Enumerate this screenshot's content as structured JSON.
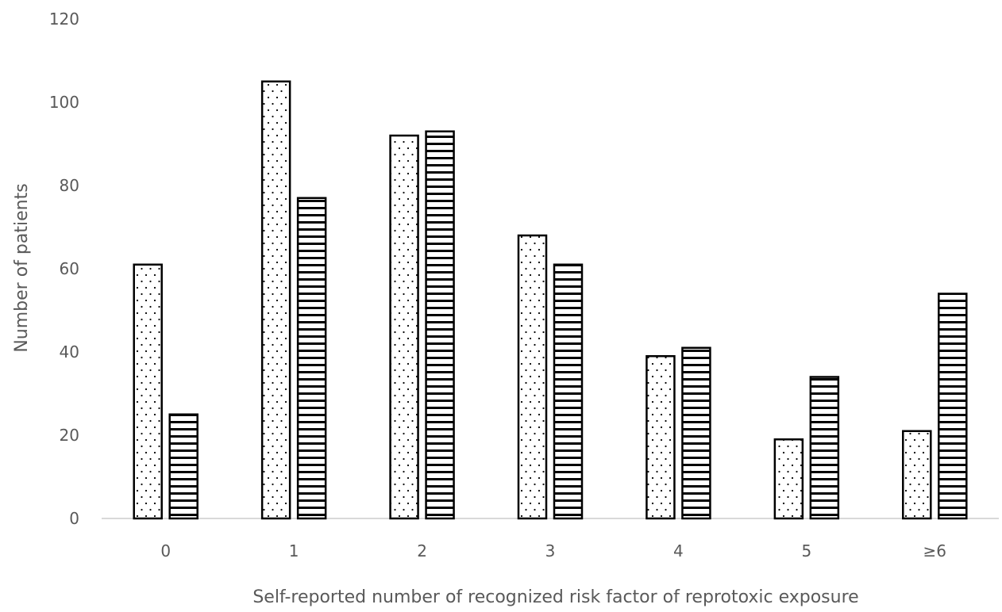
{
  "chart_data": {
    "type": "bar",
    "title": "",
    "xlabel": "Self-reported number of recognized risk factor of reprotoxic exposure",
    "ylabel": "Number of patients",
    "categories": [
      "0",
      "1",
      "2",
      "3",
      "4",
      "5",
      "≥6"
    ],
    "series": [
      {
        "pattern": "dots",
        "values": [
          61,
          105,
          92,
          68,
          39,
          19,
          21
        ]
      },
      {
        "pattern": "horizontal-lines",
        "values": [
          25,
          77,
          93,
          61,
          41,
          34,
          54
        ]
      }
    ],
    "ylim": [
      0,
      120
    ],
    "yticks": [
      "0",
      "20",
      "40",
      "60",
      "80",
      "100",
      "120"
    ],
    "grid": false,
    "legend": "none",
    "colors": {
      "bar_fill": "#ffffff",
      "bar_stroke": "#000000",
      "pattern": "#000000",
      "axis": "#d9d9d9",
      "text": "#595959"
    }
  }
}
